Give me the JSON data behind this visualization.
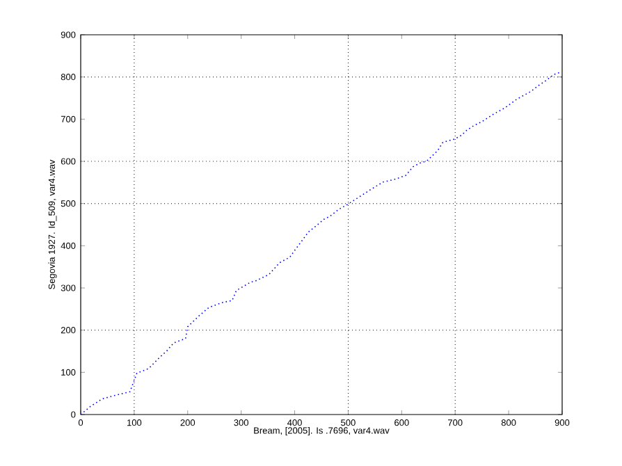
{
  "chart_data": {
    "type": "line",
    "xlabel": "Bream, [2005]. Is .7696, var4.wav",
    "ylabel": "Segovia 1927. Id_509, var4.wav",
    "xlim": [
      0,
      900
    ],
    "ylim": [
      0,
      900
    ],
    "xticks": [
      0,
      100,
      200,
      300,
      400,
      500,
      600,
      700,
      800,
      900
    ],
    "yticks": [
      0,
      100,
      200,
      300,
      400,
      500,
      600,
      700,
      800,
      900
    ],
    "line_style": "dotted",
    "grid": false,
    "ref_lines": [
      {
        "axis": "x",
        "value": 100,
        "line_style": "dotted",
        "color": "#000000"
      },
      {
        "axis": "x",
        "value": 500,
        "line_style": "dotted",
        "color": "#000000"
      },
      {
        "axis": "x",
        "value": 700,
        "line_style": "dotted",
        "color": "#000000"
      },
      {
        "axis": "y",
        "value": 200,
        "line_style": "dotted",
        "color": "#000000"
      },
      {
        "axis": "y",
        "value": 500,
        "line_style": "dotted",
        "color": "#000000"
      },
      {
        "axis": "y",
        "value": 600,
        "line_style": "dotted",
        "color": "#000000"
      },
      {
        "axis": "y",
        "value": 800,
        "line_style": "dotted",
        "color": "#000000"
      }
    ],
    "series": [
      {
        "color": "#0000ff",
        "x": [
          0,
          18,
          40,
          66,
          92,
          105,
          127,
          148,
          161,
          174,
          196,
          200,
          222,
          240,
          266,
          283,
          291,
          318,
          326,
          352,
          372,
          391,
          400,
          426,
          437,
          456,
          465,
          482,
          500,
          521,
          543,
          565,
          586,
          608,
          621,
          634,
          647,
          667,
          677,
          699,
          712,
          721,
          734,
          751,
          773,
          792,
          816,
          829,
          842,
          855,
          868,
          885,
          898
        ],
        "values": [
          0,
          19,
          37,
          46,
          54,
          98,
          109,
          136,
          151,
          170,
          180,
          208,
          235,
          254,
          266,
          270,
          294,
          314,
          316,
          332,
          360,
          373,
          389,
          433,
          444,
          464,
          469,
          486,
          499,
          516,
          534,
          551,
          557,
          567,
          587,
          596,
          601,
          625,
          645,
          653,
          662,
          673,
          684,
          695,
          713,
          726,
          748,
          757,
          766,
          779,
          790,
          806,
          812
        ]
      }
    ]
  }
}
